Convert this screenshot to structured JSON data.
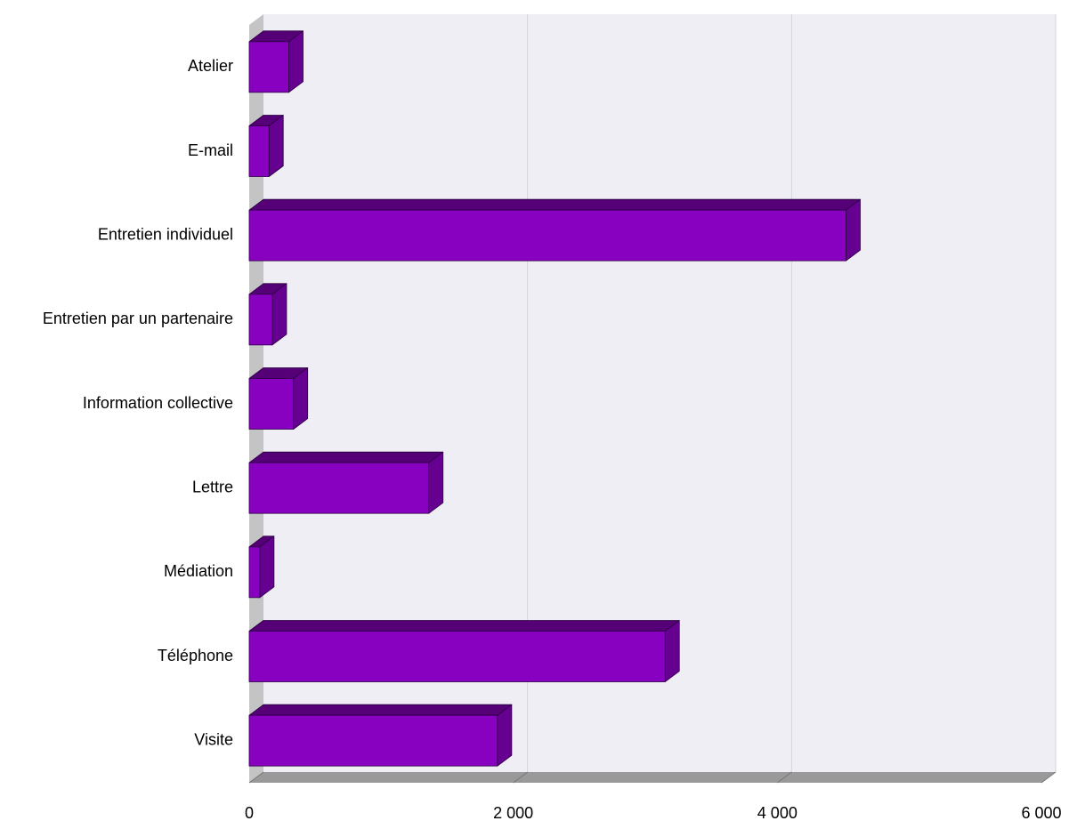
{
  "chart_data": {
    "type": "bar",
    "orientation": "horizontal",
    "three_d": true,
    "title": "",
    "xlabel": "",
    "ylabel": "",
    "categories": [
      "Atelier",
      "E-mail",
      "Entretien individuel",
      "Entretien par un partenaire",
      "Information collective",
      "Lettre",
      "Médiation",
      "Téléphone",
      "Visite"
    ],
    "values": [
      300,
      150,
      4520,
      175,
      335,
      1360,
      80,
      3150,
      1880
    ],
    "xlim": [
      0,
      6000
    ],
    "ticks": [
      0,
      2000,
      4000,
      6000
    ],
    "tick_labels": [
      "0",
      "2 000",
      "4 000",
      "6 000"
    ],
    "grid": true,
    "legend": "none",
    "colors": {
      "bar_front": "#8800c0",
      "bar_top": "#560078",
      "bar_side": "#660090",
      "bar_edge": "#2a0040",
      "plot_bg": "#efeef5",
      "gridline": "#d4d4da",
      "wall": "#c4c4c4",
      "floor": "#999999"
    }
  }
}
